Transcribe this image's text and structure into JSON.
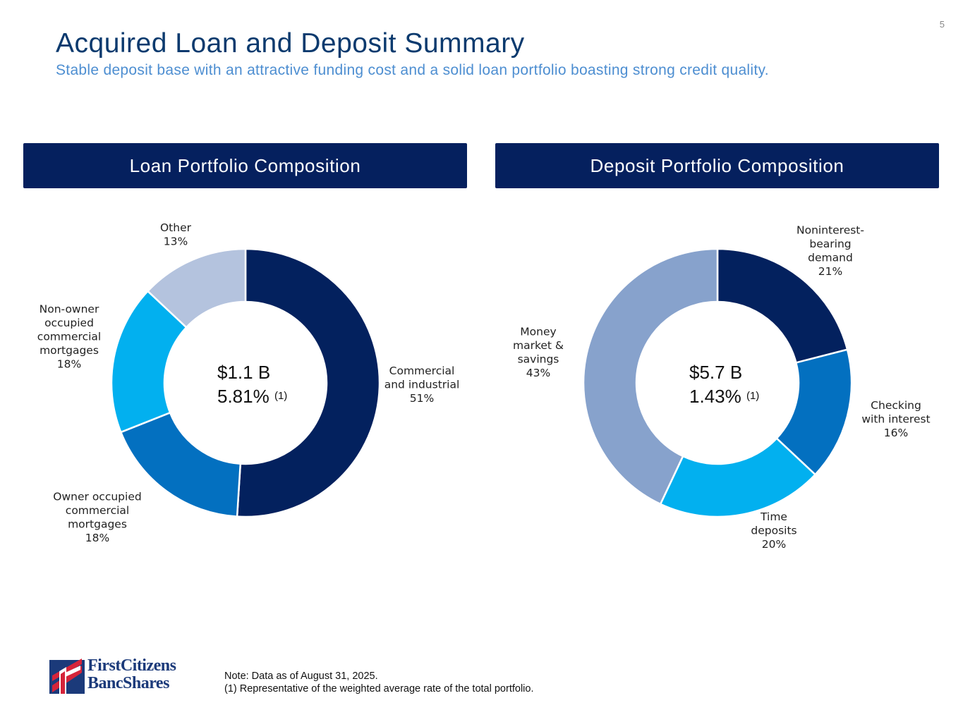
{
  "page_number": "5",
  "title": "Acquired Loan and Deposit Summary",
  "subtitle": "Stable deposit base with an attractive funding cost and a solid loan portfolio boasting strong credit quality.",
  "panels": {
    "loan_title": "Loan Portfolio Composition",
    "deposit_title": "Deposit Portfolio Composition"
  },
  "chart_data": [
    {
      "type": "pie",
      "donut": true,
      "title": "Loan Portfolio Composition",
      "center_total": "$1.1 B",
      "center_rate": "5.81%",
      "center_footnote": "(1)",
      "slices": [
        {
          "label_lines": [
            "Commercial",
            "and industrial"
          ],
          "value": 51,
          "display": "51%",
          "color": "#03215e"
        },
        {
          "label_lines": [
            "Owner occupied",
            "commercial",
            "mortgages"
          ],
          "value": 18,
          "display": "18%",
          "color": "#0370c0"
        },
        {
          "label_lines": [
            "Non-owner",
            "occupied",
            "commercial",
            "mortgages"
          ],
          "value": 18,
          "display": "18%",
          "color": "#02b0ef"
        },
        {
          "label_lines": [
            "Other"
          ],
          "value": 13,
          "display": "13%",
          "color": "#b4c3de"
        }
      ]
    },
    {
      "type": "pie",
      "donut": true,
      "title": "Deposit Portfolio Composition",
      "center_total": "$5.7 B",
      "center_rate": "1.43%",
      "center_footnote": "(1)",
      "slices": [
        {
          "label_lines": [
            "Noninterest-",
            "bearing",
            "demand"
          ],
          "value": 21,
          "display": "21%",
          "color": "#03215e"
        },
        {
          "label_lines": [
            "Checking",
            "with interest"
          ],
          "value": 16,
          "display": "16%",
          "color": "#0370c0"
        },
        {
          "label_lines": [
            "Time",
            "deposits"
          ],
          "value": 20,
          "display": "20%",
          "color": "#02b0ef"
        },
        {
          "label_lines": [
            "Money",
            "market &",
            "savings"
          ],
          "value": 43,
          "display": "43%",
          "color": "#87a2cc"
        }
      ]
    }
  ],
  "logo": {
    "line1": "FirstCitizens",
    "line2": "BancShares"
  },
  "notes": {
    "line1": "Note: Data as of August 31, 2025.",
    "line2": "(1)  Representative of the weighted average rate of the total portfolio."
  }
}
